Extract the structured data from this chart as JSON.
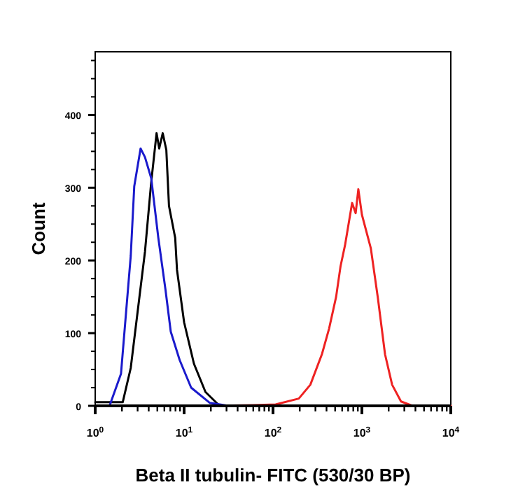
{
  "chart_data": {
    "type": "line",
    "xlabel": "Beta II tubulin- FITC (530/30 BP)",
    "ylabel": "Count",
    "log": "x",
    "grid": false,
    "line_style": "solid",
    "xlim": [
      1,
      10000
    ],
    "ylim": [
      0,
      487
    ],
    "xticks": [
      {
        "value": 1,
        "label": "10$^{0}$"
      },
      {
        "value": 2,
        "label": null
      },
      {
        "value": 3,
        "label": null
      },
      {
        "value": 4,
        "label": null
      },
      {
        "value": 5,
        "label": null
      },
      {
        "value": 6,
        "label": null
      },
      {
        "value": 7,
        "label": null
      },
      {
        "value": 8,
        "label": null
      },
      {
        "value": 9,
        "label": null
      },
      {
        "value": 10,
        "label": "10$^{1}$"
      },
      {
        "value": 20,
        "label": null
      },
      {
        "value": 30,
        "label": null
      },
      {
        "value": 40,
        "label": null
      },
      {
        "value": 50,
        "label": null
      },
      {
        "value": 60,
        "label": null
      },
      {
        "value": 70,
        "label": null
      },
      {
        "value": 80,
        "label": null
      },
      {
        "value": 90,
        "label": null
      },
      {
        "value": 100,
        "label": "10$^{2}$"
      },
      {
        "value": 200,
        "label": null
      },
      {
        "value": 300,
        "label": null
      },
      {
        "value": 400,
        "label": null
      },
      {
        "value": 500,
        "label": null
      },
      {
        "value": 600,
        "label": null
      },
      {
        "value": 700,
        "label": null
      },
      {
        "value": 800,
        "label": null
      },
      {
        "value": 900,
        "label": null
      },
      {
        "value": 1000,
        "label": "10$^{3}$"
      },
      {
        "value": 2000,
        "label": null
      },
      {
        "value": 3000,
        "label": null
      },
      {
        "value": 4000,
        "label": null
      },
      {
        "value": 5000,
        "label": null
      },
      {
        "value": 6000,
        "label": null
      },
      {
        "value": 7000,
        "label": null
      },
      {
        "value": 8000,
        "label": null
      },
      {
        "value": 9000,
        "label": null
      },
      {
        "value": 10000,
        "label": "10$^{4}$"
      }
    ],
    "yticks": [
      0,
      {
        "value": 25,
        "label": null
      },
      {
        "value": 50,
        "label": null
      },
      {
        "value": 75,
        "label": null
      },
      100,
      {
        "value": 125,
        "label": null
      },
      {
        "value": 150,
        "label": null
      },
      {
        "value": 175,
        "label": null
      },
      200,
      {
        "value": 225,
        "label": null
      },
      {
        "value": 250,
        "label": null
      },
      {
        "value": 275,
        "label": null
      },
      300,
      {
        "value": 325,
        "label": null
      },
      {
        "value": 350,
        "label": null
      },
      {
        "value": 375,
        "label": null
      },
      400,
      {
        "value": 425,
        "label": null
      },
      {
        "value": 450,
        "label": null
      },
      {
        "value": 475,
        "label": null
      }
    ],
    "series": [
      {
        "color": "#ee2222",
        "x": [
          1,
          20,
          60,
          107,
          195,
          263,
          355,
          427,
          513,
          575,
          646,
          776,
          851,
          912,
          1000,
          1259,
          1514,
          1820,
          2188,
          2754,
          3715,
          10000
        ],
        "values": [
          0,
          0,
          1,
          2,
          10,
          29,
          71,
          106,
          150,
          192,
          221,
          279,
          265,
          298,
          263,
          217,
          148,
          71,
          29,
          6,
          0,
          0
        ]
      },
      {
        "color": "#000000",
        "x": [
          1,
          2.04,
          2.51,
          3.63,
          4.27,
          4.9,
          5.25,
          5.75,
          6.31,
          6.76,
          7.94,
          8.32,
          10,
          12.9,
          17.4,
          25.1,
          40
        ],
        "values": [
          5,
          5,
          52,
          212,
          308,
          375,
          354,
          375,
          352,
          275,
          231,
          187,
          115,
          58,
          19,
          0,
          0
        ]
      },
      {
        "color": "#1a1acc",
        "x": [
          1,
          1.45,
          1.95,
          2.51,
          2.75,
          3.24,
          3.63,
          4.27,
          5.13,
          6.17,
          7.08,
          8.91,
          12,
          19.5,
          31.6
        ],
        "values": [
          0,
          0,
          44,
          206,
          302,
          354,
          342,
          313,
          231,
          160,
          102,
          63,
          25,
          4,
          0
        ]
      }
    ]
  }
}
